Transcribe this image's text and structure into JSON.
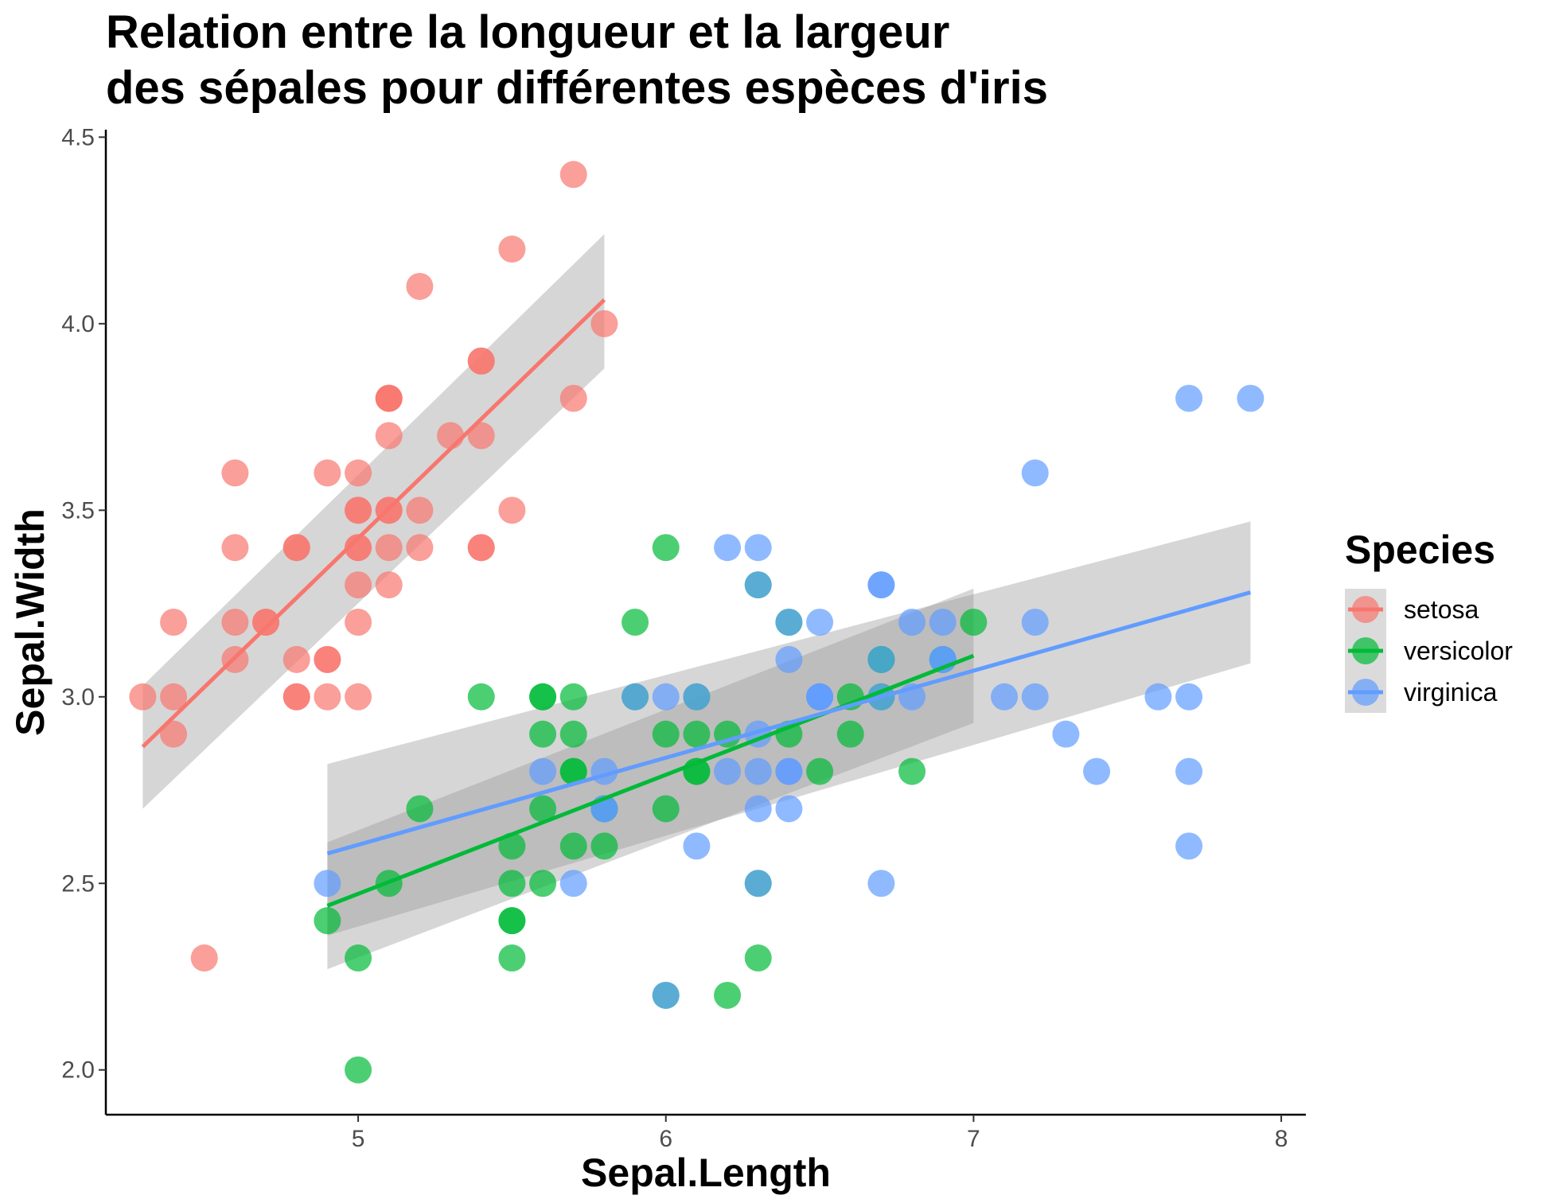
{
  "chart_data": {
    "type": "scatter",
    "title": [
      "Relation entre la longueur et la largeur",
      "des sépales pour différentes espèces d'iris"
    ],
    "xlabel": "Sepal.Length",
    "ylabel": "Sepal.Width",
    "xlim": [
      4.18,
      8.08
    ],
    "ylim": [
      1.88,
      4.52
    ],
    "xticks": [
      5,
      6,
      7,
      8
    ],
    "xtick_labels": [
      "5",
      "6",
      "7",
      "8"
    ],
    "yticks": [
      2.0,
      2.5,
      3.0,
      3.5,
      4.0,
      4.5
    ],
    "ytick_labels": [
      "2.0",
      "2.5",
      "3.0",
      "3.5",
      "4.0",
      "4.5"
    ],
    "grid": false,
    "legend": {
      "title": "Species",
      "position": "right"
    },
    "smoothing": "linear fit with 95% confidence band per series",
    "series": [
      {
        "name": "setosa",
        "color": "#F8766D",
        "points": [
          [
            5.1,
            3.5
          ],
          [
            4.9,
            3.0
          ],
          [
            4.7,
            3.2
          ],
          [
            4.6,
            3.1
          ],
          [
            5.0,
            3.6
          ],
          [
            5.4,
            3.9
          ],
          [
            4.6,
            3.4
          ],
          [
            5.0,
            3.4
          ],
          [
            4.4,
            2.9
          ],
          [
            4.9,
            3.1
          ],
          [
            5.4,
            3.7
          ],
          [
            4.8,
            3.4
          ],
          [
            4.8,
            3.0
          ],
          [
            4.3,
            3.0
          ],
          [
            5.8,
            4.0
          ],
          [
            5.7,
            4.4
          ],
          [
            5.4,
            3.9
          ],
          [
            5.1,
            3.5
          ],
          [
            5.7,
            3.8
          ],
          [
            5.1,
            3.8
          ],
          [
            5.4,
            3.4
          ],
          [
            5.1,
            3.7
          ],
          [
            4.6,
            3.6
          ],
          [
            5.1,
            3.3
          ],
          [
            4.8,
            3.4
          ],
          [
            5.0,
            3.0
          ],
          [
            5.0,
            3.4
          ],
          [
            5.2,
            3.5
          ],
          [
            5.2,
            3.4
          ],
          [
            4.7,
            3.2
          ],
          [
            4.8,
            3.1
          ],
          [
            5.4,
            3.4
          ],
          [
            5.2,
            4.1
          ],
          [
            5.5,
            4.2
          ],
          [
            4.9,
            3.1
          ],
          [
            5.0,
            3.2
          ],
          [
            5.5,
            3.5
          ],
          [
            4.9,
            3.6
          ],
          [
            4.4,
            3.0
          ],
          [
            5.1,
            3.4
          ],
          [
            5.0,
            3.5
          ],
          [
            4.5,
            2.3
          ],
          [
            4.4,
            3.2
          ],
          [
            5.0,
            3.5
          ],
          [
            5.1,
            3.8
          ],
          [
            4.8,
            3.0
          ],
          [
            5.1,
            3.8
          ],
          [
            4.6,
            3.2
          ],
          [
            5.3,
            3.7
          ],
          [
            5.0,
            3.3
          ]
        ],
        "fit": {
          "x": [
            4.3,
            5.8
          ],
          "y": [
            2.866,
            4.064
          ],
          "lower": [
            2.7,
            3.88
          ],
          "upper": [
            3.03,
            4.24
          ]
        }
      },
      {
        "name": "versicolor",
        "color": "#00BA38",
        "points": [
          [
            7.0,
            3.2
          ],
          [
            6.4,
            3.2
          ],
          [
            6.9,
            3.1
          ],
          [
            5.5,
            2.3
          ],
          [
            6.5,
            2.8
          ],
          [
            5.7,
            2.8
          ],
          [
            6.3,
            3.3
          ],
          [
            4.9,
            2.4
          ],
          [
            6.6,
            2.9
          ],
          [
            5.2,
            2.7
          ],
          [
            5.0,
            2.0
          ],
          [
            5.9,
            3.0
          ],
          [
            6.0,
            2.2
          ],
          [
            6.1,
            2.9
          ],
          [
            5.6,
            2.9
          ],
          [
            6.7,
            3.1
          ],
          [
            5.6,
            3.0
          ],
          [
            5.8,
            2.7
          ],
          [
            6.2,
            2.2
          ],
          [
            5.6,
            2.5
          ],
          [
            5.9,
            3.2
          ],
          [
            6.1,
            2.8
          ],
          [
            6.3,
            2.5
          ],
          [
            6.1,
            2.8
          ],
          [
            6.4,
            2.9
          ],
          [
            6.6,
            3.0
          ],
          [
            6.8,
            2.8
          ],
          [
            6.7,
            3.0
          ],
          [
            6.0,
            2.9
          ],
          [
            5.7,
            2.6
          ],
          [
            5.5,
            2.4
          ],
          [
            5.5,
            2.4
          ],
          [
            5.8,
            2.7
          ],
          [
            6.0,
            2.7
          ],
          [
            5.4,
            3.0
          ],
          [
            6.0,
            3.4
          ],
          [
            6.7,
            3.1
          ],
          [
            6.3,
            2.3
          ],
          [
            5.6,
            3.0
          ],
          [
            5.5,
            2.5
          ],
          [
            5.5,
            2.6
          ],
          [
            6.1,
            3.0
          ],
          [
            5.8,
            2.6
          ],
          [
            5.0,
            2.3
          ],
          [
            5.6,
            2.7
          ],
          [
            5.7,
            3.0
          ],
          [
            5.7,
            2.9
          ],
          [
            6.2,
            2.9
          ],
          [
            5.1,
            2.5
          ],
          [
            5.7,
            2.8
          ]
        ],
        "fit": {
          "x": [
            4.9,
            7.0
          ],
          "y": [
            2.44,
            3.11
          ],
          "lower": [
            2.27,
            2.93
          ],
          "upper": [
            2.61,
            3.29
          ]
        }
      },
      {
        "name": "virginica",
        "color": "#619CFF",
        "points": [
          [
            6.3,
            3.3
          ],
          [
            5.8,
            2.7
          ],
          [
            7.1,
            3.0
          ],
          [
            6.3,
            2.9
          ],
          [
            6.5,
            3.0
          ],
          [
            7.6,
            3.0
          ],
          [
            4.9,
            2.5
          ],
          [
            7.3,
            2.9
          ],
          [
            6.7,
            2.5
          ],
          [
            7.2,
            3.6
          ],
          [
            6.5,
            3.2
          ],
          [
            6.4,
            2.7
          ],
          [
            6.8,
            3.0
          ],
          [
            5.7,
            2.5
          ],
          [
            5.8,
            2.8
          ],
          [
            6.4,
            3.2
          ],
          [
            6.5,
            3.0
          ],
          [
            7.7,
            3.8
          ],
          [
            7.7,
            2.6
          ],
          [
            6.0,
            2.2
          ],
          [
            6.9,
            3.2
          ],
          [
            5.6,
            2.8
          ],
          [
            7.7,
            2.8
          ],
          [
            6.3,
            2.7
          ],
          [
            6.7,
            3.3
          ],
          [
            7.2,
            3.2
          ],
          [
            6.2,
            2.8
          ],
          [
            6.1,
            3.0
          ],
          [
            6.4,
            2.8
          ],
          [
            7.2,
            3.0
          ],
          [
            7.4,
            2.8
          ],
          [
            7.9,
            3.8
          ],
          [
            6.4,
            2.8
          ],
          [
            6.3,
            2.8
          ],
          [
            6.1,
            2.6
          ],
          [
            7.7,
            3.0
          ],
          [
            6.3,
            3.4
          ],
          [
            6.4,
            3.1
          ],
          [
            6.0,
            3.0
          ],
          [
            6.9,
            3.1
          ],
          [
            6.7,
            3.1
          ],
          [
            6.9,
            3.1
          ],
          [
            5.8,
            2.7
          ],
          [
            6.8,
            3.2
          ],
          [
            6.7,
            3.3
          ],
          [
            6.7,
            3.0
          ],
          [
            6.3,
            2.5
          ],
          [
            6.5,
            3.0
          ],
          [
            6.2,
            3.4
          ],
          [
            5.9,
            3.0
          ]
        ],
        "fit": {
          "x": [
            4.9,
            7.9
          ],
          "y": [
            2.58,
            3.28
          ],
          "lower": [
            2.36,
            3.09
          ],
          "upper": [
            2.82,
            3.47
          ]
        }
      }
    ]
  }
}
